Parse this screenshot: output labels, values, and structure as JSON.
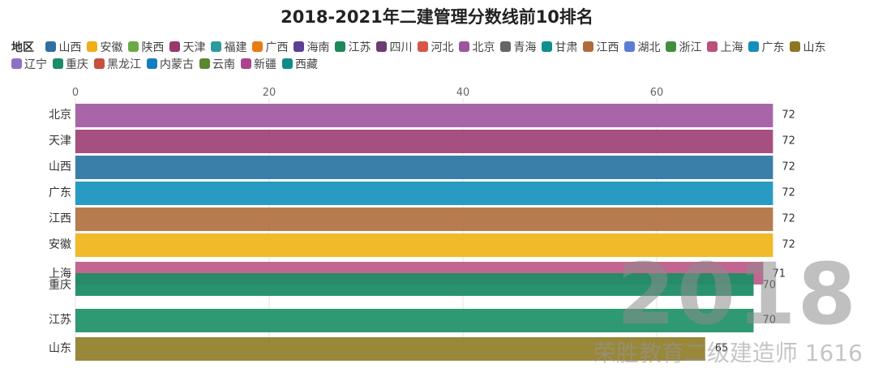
{
  "chart_data": {
    "type": "bar",
    "orientation": "horizontal",
    "title": "2018-2021年二建管理分数线前10排名",
    "legend": {
      "title": "地区",
      "placement": "top",
      "items": [
        {
          "name": "山西",
          "color": "#2f6f9f"
        },
        {
          "name": "安徽",
          "color": "#efae17"
        },
        {
          "name": "陕西",
          "color": "#6aab47"
        },
        {
          "name": "天津",
          "color": "#963a6b"
        },
        {
          "name": "福建",
          "color": "#2e9aa0"
        },
        {
          "name": "广西",
          "color": "#e67d12"
        },
        {
          "name": "海南",
          "color": "#5b3f95"
        },
        {
          "name": "江苏",
          "color": "#1a8858"
        },
        {
          "name": "四川",
          "color": "#6d3c72"
        },
        {
          "name": "河北",
          "color": "#d65648"
        },
        {
          "name": "北京",
          "color": "#9c55a0"
        },
        {
          "name": "青海",
          "color": "#666666"
        },
        {
          "name": "甘肃",
          "color": "#118e8e"
        },
        {
          "name": "江西",
          "color": "#b06b3c"
        },
        {
          "name": "湖北",
          "color": "#5a7ed3"
        },
        {
          "name": "浙江",
          "color": "#3f8f3f"
        },
        {
          "name": "上海",
          "color": "#b9517c"
        },
        {
          "name": "广东",
          "color": "#138fb9"
        },
        {
          "name": "山东",
          "color": "#8f7721"
        },
        {
          "name": "辽宁",
          "color": "#8f71c3"
        },
        {
          "name": "重庆",
          "color": "#1a8d66"
        },
        {
          "name": "黑龙江",
          "color": "#c8503f"
        },
        {
          "name": "内蒙古",
          "color": "#147fbf"
        },
        {
          "name": "云南",
          "color": "#5c862f"
        },
        {
          "name": "新疆",
          "color": "#a9458e"
        },
        {
          "name": "西藏",
          "color": "#138a8a"
        }
      ]
    },
    "categories": [
      "北京",
      "天津",
      "山西",
      "广东",
      "江西",
      "安徽",
      "上海",
      "重庆",
      "江苏",
      "山东"
    ],
    "values": [
      72,
      72,
      72,
      72,
      72,
      72,
      71,
      70,
      70,
      65
    ],
    "bar_colors": [
      "#a35ea3",
      "#a1467a",
      "#2f77a5",
      "#1b96bf",
      "#b27446",
      "#f0b61f",
      "#c05d8b",
      "#1f8c66",
      "#23946a",
      "#94812f"
    ],
    "xlim": [
      0,
      72
    ],
    "xticks": [
      0,
      20,
      40,
      60
    ],
    "grid": true,
    "axis_position": "top"
  },
  "watermark": {
    "year": "2018",
    "text": "荣胜教育二级建造师 1616"
  }
}
